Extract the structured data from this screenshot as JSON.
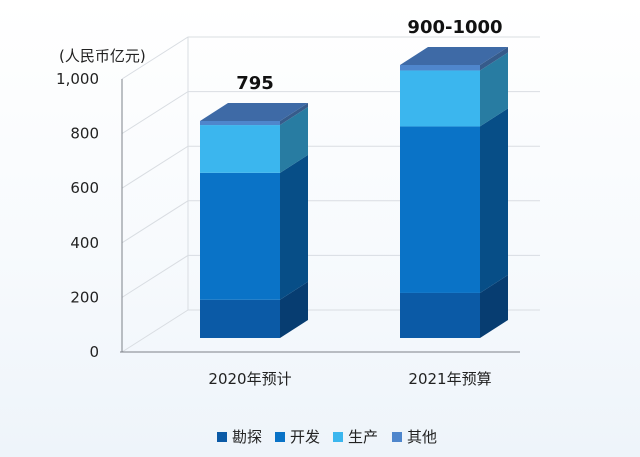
{
  "chart_data": {
    "type": "bar",
    "stacked": true,
    "style": "3d",
    "unit_label": "(人民币亿元)",
    "categories": [
      "2020年预计",
      "2021年预算"
    ],
    "series": [
      {
        "name": "勘探",
        "color": "#0b5aa6",
        "values": [
          140,
          165
        ]
      },
      {
        "name": "开发",
        "color": "#0a73c7",
        "values": [
          465,
          610
        ]
      },
      {
        "name": "生产",
        "color": "#3bb6ee",
        "values": [
          175,
          205
        ]
      },
      {
        "name": "其他",
        "color": "#4f86cc",
        "values": [
          15,
          20
        ]
      }
    ],
    "totals": [
      "795",
      "900-1000"
    ],
    "yticks": [
      "0",
      "200",
      "400",
      "600",
      "800",
      "1,000"
    ],
    "ylim": [
      0,
      1000
    ],
    "grid": true,
    "legend_position": "bottom"
  }
}
